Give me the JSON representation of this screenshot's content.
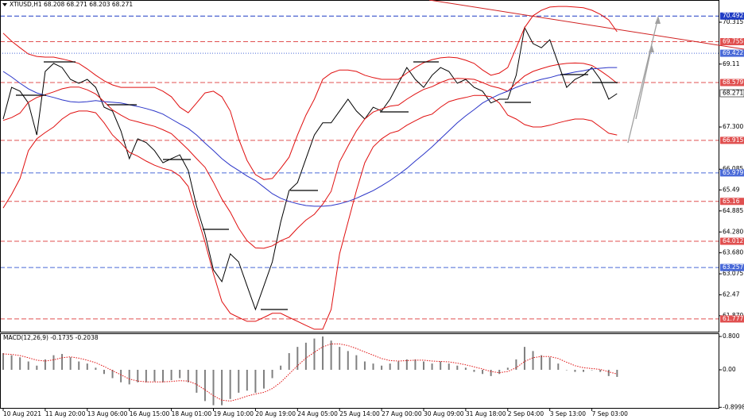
{
  "chart_data": [
    {
      "type": "line",
      "title": "XTIUSD,H1 68.208 68.271 68.203 68.271",
      "categories": [
        "10 Aug 2021",
        null,
        null,
        null,
        null,
        "11 Aug 20:00",
        null,
        null,
        null,
        null,
        "13 Aug 06:00",
        null,
        null,
        null,
        null,
        "16 Aug 15:00",
        null,
        null,
        null,
        null,
        "18 Aug 01:00",
        null,
        null,
        null,
        null,
        "19 Aug 10:00",
        null,
        null,
        null,
        null,
        "20 Aug 19:00",
        null,
        null,
        null,
        null,
        "24 Aug 05:00",
        null,
        null,
        null,
        null,
        "25 Aug 14:00",
        null,
        null,
        null,
        null,
        "27 Aug 00:00",
        null,
        null,
        null,
        null,
        "30 Aug 09:00",
        null,
        null,
        null,
        null,
        "31 Aug 18:00",
        null,
        null,
        null,
        null,
        "2 Sep 04:00",
        null,
        null,
        null,
        null,
        "3 Sep 13:00",
        null,
        null,
        null,
        null,
        "7 Sep 03:00",
        null,
        null,
        null
      ],
      "series": [
        {
          "color": "#000000",
          "values": [
            67.53,
            68.44,
            68.33,
            67.99,
            67.07,
            68.9,
            69.13,
            69.01,
            68.67,
            68.56,
            68.67,
            68.44,
            67.87,
            67.76,
            67.19,
            66.39,
            66.96,
            66.85,
            66.62,
            66.27,
            66.39,
            66.5,
            66.05,
            65.02,
            64.22,
            63.19,
            62.85,
            63.65,
            63.42,
            62.73,
            62.05,
            62.73,
            63.42,
            64.56,
            65.47,
            65.7,
            66.39,
            67.07,
            67.42,
            67.42,
            67.76,
            68.1,
            67.76,
            67.53,
            67.87,
            67.76,
            68.1,
            68.56,
            69.01,
            68.67,
            68.44,
            68.79,
            69.01,
            68.9,
            68.56,
            68.67,
            68.44,
            68.33,
            67.99,
            68.1,
            68.1,
            68.79,
            70.16,
            69.7,
            69.58,
            69.81,
            69.13,
            68.44,
            68.67,
            68.79,
            69.01,
            68.67,
            68.1,
            68.26
          ]
        },
        {
          "color": "#e01010",
          "values": [
            70.0,
            69.77,
            69.58,
            69.4,
            69.33,
            69.31,
            69.31,
            69.26,
            69.2,
            69.13,
            68.97,
            68.79,
            68.63,
            68.51,
            68.44,
            68.44,
            68.44,
            68.44,
            68.44,
            68.33,
            68.17,
            67.87,
            67.71,
            67.99,
            68.28,
            68.33,
            68.17,
            67.76,
            66.96,
            66.34,
            65.93,
            65.79,
            65.82,
            66.11,
            66.43,
            67.07,
            67.64,
            68.1,
            68.67,
            68.85,
            68.94,
            68.94,
            68.9,
            68.79,
            68.72,
            68.67,
            68.67,
            68.67,
            68.85,
            69.01,
            69.15,
            69.24,
            69.29,
            69.31,
            69.29,
            69.22,
            69.13,
            68.94,
            68.79,
            68.85,
            69.01,
            69.58,
            70.16,
            70.5,
            70.66,
            70.75,
            70.77,
            70.77,
            70.75,
            70.73,
            70.66,
            70.54,
            70.38,
            70.04
          ]
        },
        {
          "color": "#e01010",
          "values": [
            67.49,
            67.57,
            67.7,
            68.01,
            68.15,
            68.23,
            68.31,
            68.4,
            68.45,
            68.45,
            68.37,
            68.25,
            68.03,
            67.79,
            67.64,
            67.51,
            67.45,
            67.38,
            67.32,
            67.22,
            67.11,
            66.88,
            66.65,
            66.39,
            66.14,
            65.71,
            65.23,
            64.85,
            64.39,
            64.03,
            63.82,
            63.81,
            63.88,
            64.03,
            64.13,
            64.39,
            64.62,
            64.79,
            65.08,
            65.45,
            66.3,
            66.75,
            67.19,
            67.53,
            67.73,
            67.82,
            67.9,
            67.93,
            68.1,
            68.25,
            68.38,
            68.46,
            68.58,
            68.67,
            68.7,
            68.69,
            68.67,
            68.58,
            68.48,
            68.42,
            68.33,
            68.56,
            68.77,
            68.9,
            68.98,
            69.05,
            69.1,
            69.13,
            69.14,
            69.13,
            69.07,
            68.92,
            68.75,
            68.56
          ]
        },
        {
          "color": "#e01010",
          "values": [
            64.97,
            65.36,
            65.82,
            66.62,
            66.96,
            67.14,
            67.3,
            67.53,
            67.69,
            67.76,
            67.76,
            67.71,
            67.42,
            67.07,
            66.84,
            66.57,
            66.46,
            66.32,
            66.2,
            66.11,
            66.05,
            65.89,
            65.59,
            64.79,
            63.99,
            63.08,
            62.28,
            61.94,
            61.82,
            61.71,
            61.71,
            61.82,
            61.94,
            61.94,
            61.82,
            61.71,
            61.59,
            61.48,
            61.48,
            62.05,
            63.65,
            64.56,
            65.47,
            66.27,
            66.73,
            66.96,
            67.12,
            67.19,
            67.35,
            67.48,
            67.6,
            67.67,
            67.87,
            68.03,
            68.1,
            68.15,
            68.21,
            68.21,
            68.17,
            67.99,
            67.64,
            67.53,
            67.37,
            67.3,
            67.3,
            67.35,
            67.42,
            67.48,
            67.53,
            67.53,
            67.48,
            67.3,
            67.12,
            67.07
          ]
        },
        {
          "color": "#2b35c8",
          "values": [
            68.9,
            68.74,
            68.56,
            68.4,
            68.28,
            68.21,
            68.15,
            68.08,
            68.03,
            68.01,
            68.03,
            68.06,
            68.03,
            68.01,
            67.99,
            67.94,
            67.89,
            67.83,
            67.76,
            67.67,
            67.53,
            67.39,
            67.26,
            67.07,
            66.84,
            66.62,
            66.39,
            66.2,
            66.05,
            65.89,
            65.76,
            65.57,
            65.38,
            65.25,
            65.16,
            65.09,
            65.04,
            65.02,
            65.02,
            65.04,
            65.09,
            65.16,
            65.25,
            65.36,
            65.47,
            65.61,
            65.76,
            65.93,
            66.11,
            66.32,
            66.52,
            66.73,
            66.96,
            67.19,
            67.42,
            67.62,
            67.8,
            67.99,
            68.12,
            68.24,
            68.33,
            68.44,
            68.53,
            68.6,
            68.67,
            68.72,
            68.79,
            68.83,
            68.88,
            68.92,
            68.97,
            68.99,
            69.01,
            69.01
          ]
        }
      ],
      "ylim": [
        61.41,
        70.954
      ],
      "yticks": [
        70.315,
        69.11,
        {
          "value": 67.3,
          "label": "67.300"
        },
        66.085,
        65.49,
        64.885,
        {
          "value": 64.28,
          "label": "64.280"
        },
        {
          "value": 63.68,
          "label": "63.680"
        },
        63.075,
        62.47,
        {
          "value": 61.87,
          "label": "61.870"
        }
      ],
      "levels": [
        {
          "value": 70.492,
          "color": "#1f3cc4",
          "style": "dashed"
        },
        {
          "value": 69.755,
          "color": "#e05050",
          "style": "dashed"
        },
        {
          "value": 69.422,
          "color": "#4a6ad8",
          "style": "dotted"
        },
        {
          "value": 68.579,
          "color": "#e05050",
          "style": "dashed"
        },
        {
          "value": 66.915,
          "color": "#e05050",
          "style": "dashed"
        },
        {
          "value": 65.979,
          "color": "#4a6ad8",
          "style": "dashed"
        },
        {
          "value": 65.16,
          "color": "#e05050",
          "style": "dashed"
        },
        {
          "value": 64.012,
          "color": "#e05050",
          "style": "dashed"
        },
        {
          "value": 63.257,
          "color": "#4a6ad8",
          "style": "dashed"
        },
        {
          "value": 61.777,
          "color": "#e05050",
          "style": "dashed"
        }
      ],
      "last": 68.271
    },
    {
      "type": "bar",
      "title": "MACD(12,26,9) -0.1735 -0.2038",
      "series": [
        {
          "color": "#808080",
          "values": [
            0.4,
            0.35,
            0.3,
            0.2,
            0.1,
            0.25,
            0.35,
            0.38,
            0.3,
            0.2,
            0.15,
            0.05,
            -0.1,
            -0.2,
            -0.3,
            -0.35,
            -0.3,
            -0.3,
            -0.28,
            -0.3,
            -0.25,
            -0.2,
            -0.3,
            -0.55,
            -0.75,
            -0.85,
            -0.85,
            -0.7,
            -0.55,
            -0.5,
            -0.55,
            -0.45,
            -0.2,
            0.1,
            0.4,
            0.55,
            0.65,
            0.75,
            0.8,
            0.7,
            0.55,
            0.45,
            0.35,
            0.2,
            0.15,
            0.1,
            0.15,
            0.2,
            0.25,
            0.25,
            0.2,
            0.15,
            0.2,
            0.15,
            0.1,
            0.05,
            -0.05,
            -0.1,
            -0.15,
            -0.1,
            0.05,
            0.25,
            0.55,
            0.45,
            0.35,
            0.3,
            0.15,
            0.0,
            -0.05,
            -0.05,
            0.0,
            -0.05,
            -0.15,
            -0.17
          ]
        },
        {
          "color": "#e01010",
          "style": "dotted",
          "values": [
            0.38,
            0.37,
            0.34,
            0.29,
            0.23,
            0.21,
            0.24,
            0.29,
            0.31,
            0.28,
            0.23,
            0.17,
            0.08,
            -0.02,
            -0.12,
            -0.22,
            -0.27,
            -0.29,
            -0.29,
            -0.29,
            -0.28,
            -0.26,
            -0.27,
            -0.35,
            -0.48,
            -0.62,
            -0.73,
            -0.75,
            -0.7,
            -0.63,
            -0.58,
            -0.54,
            -0.45,
            -0.3,
            -0.1,
            0.1,
            0.28,
            0.42,
            0.55,
            0.62,
            0.62,
            0.58,
            0.51,
            0.43,
            0.35,
            0.27,
            0.22,
            0.21,
            0.22,
            0.23,
            0.23,
            0.21,
            0.2,
            0.19,
            0.16,
            0.12,
            0.07,
            0.02,
            -0.04,
            -0.07,
            -0.04,
            0.05,
            0.2,
            0.29,
            0.32,
            0.32,
            0.27,
            0.18,
            0.1,
            0.05,
            0.03,
            0.01,
            -0.05,
            -0.1
          ]
        }
      ],
      "ylim": [
        -0.914,
        0.876
      ],
      "yticks": [
        {
          "value": 0.8,
          "label": "0.800"
        },
        {
          "value": 0,
          "label": "0.00"
        },
        -0.8998
      ]
    }
  ]
}
